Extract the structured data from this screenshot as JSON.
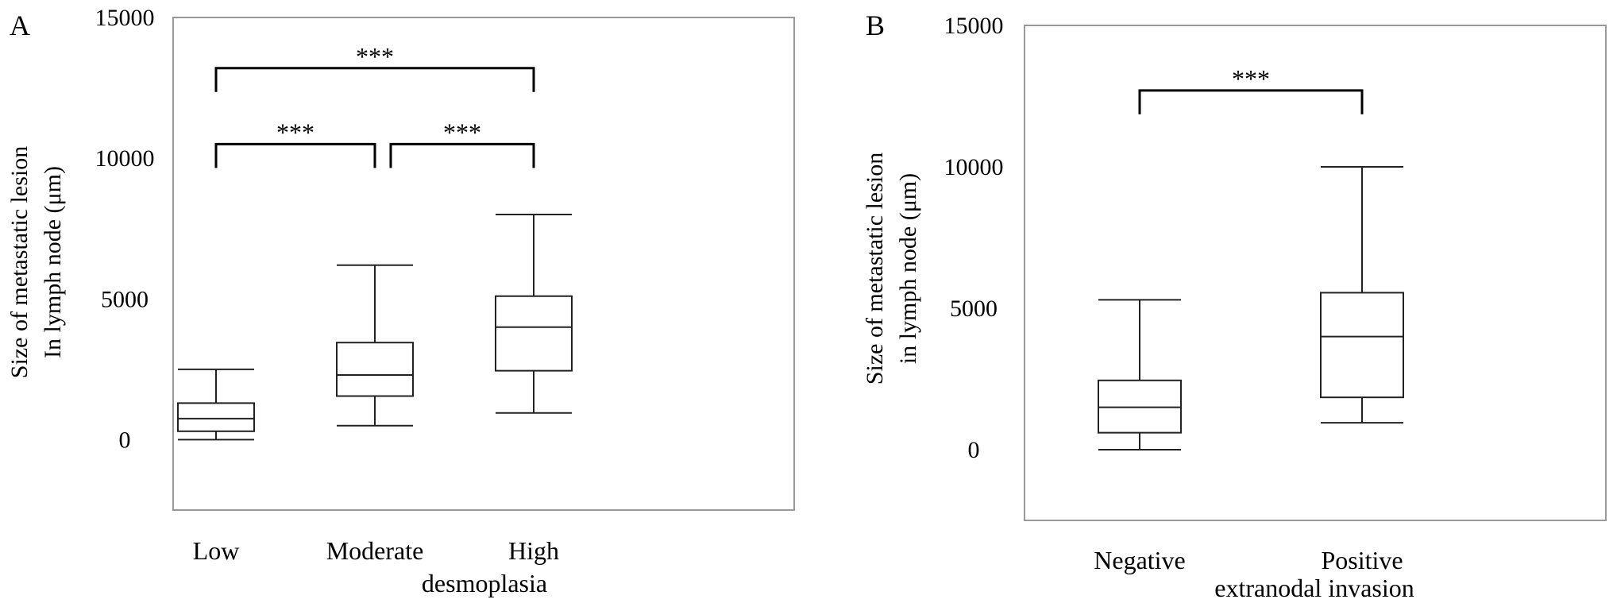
{
  "chart_data": [
    {
      "panel_label": "A",
      "type": "box",
      "ylabel_lines": [
        "Size of metastatic lesion",
        "In lymph node (μm)"
      ],
      "xlabel": "desmoplasia",
      "ylim": [
        -2500,
        15000
      ],
      "yticks": [
        "0",
        "5000",
        "10000",
        "15000"
      ],
      "categories": [
        "Low",
        "Moderate",
        "High"
      ],
      "boxes": [
        {
          "min": 0,
          "q1": 300,
          "median": 750,
          "q3": 1300,
          "max": 2500
        },
        {
          "min": 500,
          "q1": 1550,
          "median": 2300,
          "q3": 3450,
          "max": 6200
        },
        {
          "min": 950,
          "q1": 2450,
          "median": 4000,
          "q3": 5100,
          "max": 8000
        }
      ],
      "significance": [
        {
          "from": 0,
          "to": 1,
          "y": 10500,
          "label": "***"
        },
        {
          "from": 1,
          "to": 2,
          "y": 10500,
          "label": "***"
        },
        {
          "from": 0,
          "to": 2,
          "y": 13200,
          "label": "***"
        }
      ],
      "grid": false
    },
    {
      "panel_label": "B",
      "type": "box",
      "ylabel_lines": [
        "Size of metastatic lesion",
        "in lymph node (μm)"
      ],
      "xlabel": "extranodal invasion",
      "ylim": [
        -2500,
        15000
      ],
      "yticks": [
        "0",
        "5000",
        "10000",
        "15000"
      ],
      "categories": [
        "Negative",
        "Positive"
      ],
      "boxes": [
        {
          "min": 0,
          "q1": 600,
          "median": 1500,
          "q3": 2450,
          "max": 5300
        },
        {
          "min": 950,
          "q1": 1850,
          "median": 4000,
          "q3": 5550,
          "max": 10000
        }
      ],
      "significance": [
        {
          "from": 0,
          "to": 1,
          "y": 12700,
          "label": "***"
        }
      ],
      "grid": false
    }
  ]
}
